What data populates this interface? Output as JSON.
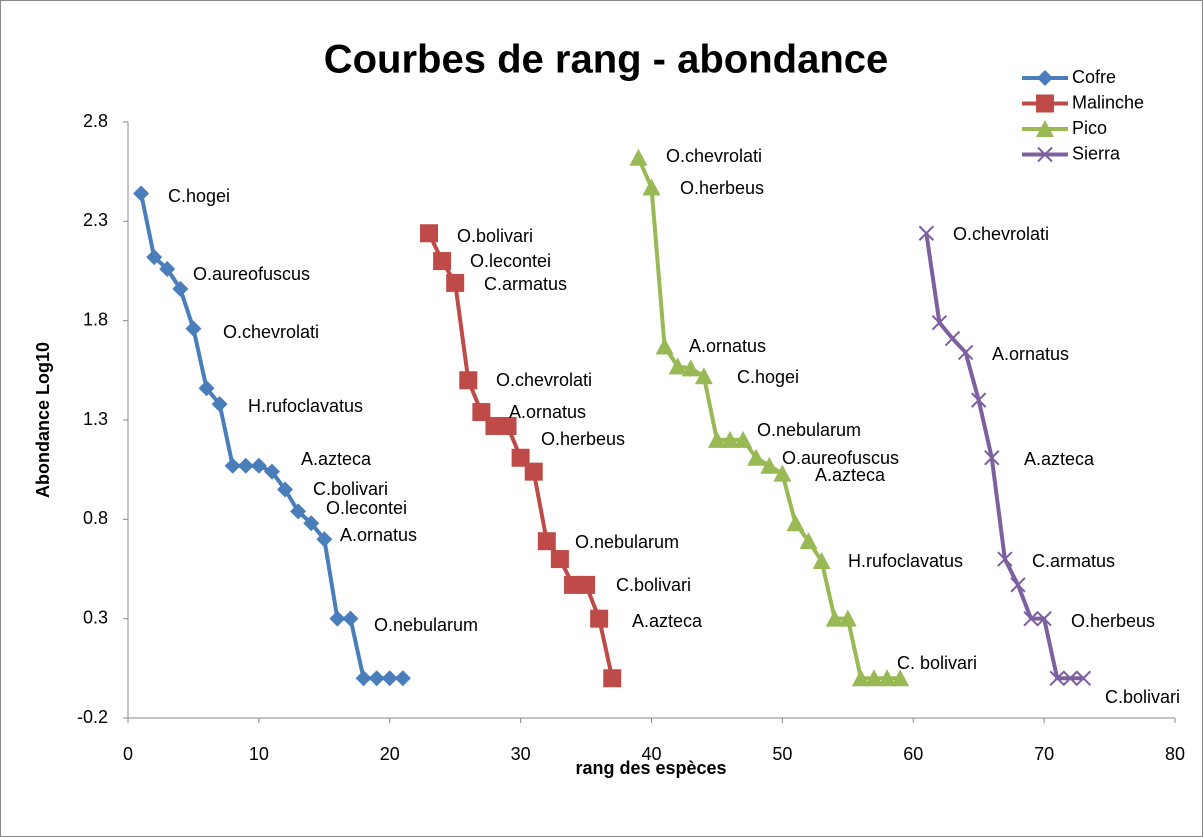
{
  "chart_data": {
    "type": "line",
    "title": "Courbes de rang - abondance",
    "x_label": "rang des espèces",
    "y_label": "Abondance Log10",
    "xlim": [
      0,
      80
    ],
    "xticks": [
      0,
      10,
      20,
      30,
      40,
      50,
      60,
      70,
      80
    ],
    "ylim": [
      -0.2,
      2.8
    ],
    "yticks": [
      -0.2,
      0.3,
      0.8,
      1.3,
      1.8,
      2.3,
      2.8
    ],
    "legend": "top-right",
    "series": [
      {
        "name": "Cofre",
        "color": "#4a7ebb",
        "marker": "diamond",
        "x": [
          1,
          2,
          3,
          4,
          5,
          6,
          7,
          8,
          9,
          10,
          11,
          12,
          13,
          14,
          15,
          16,
          17,
          18,
          19,
          20,
          21
        ],
        "values": [
          2.44,
          2.12,
          2.06,
          1.96,
          1.76,
          1.46,
          1.38,
          1.07,
          1.07,
          1.07,
          1.04,
          0.95,
          0.84,
          0.78,
          0.7,
          0.3,
          0.3,
          0,
          0,
          0,
          0
        ]
      },
      {
        "name": "Malinche",
        "color": "#be4b48",
        "marker": "square",
        "x": [
          23,
          24,
          25,
          26,
          27,
          28,
          29,
          30,
          31,
          32,
          33,
          34,
          35,
          36,
          37
        ],
        "values": [
          2.24,
          2.1,
          1.99,
          1.5,
          1.34,
          1.27,
          1.27,
          1.11,
          1.04,
          0.69,
          0.6,
          0.47,
          0.47,
          0.3,
          0
        ]
      },
      {
        "name": "Pico",
        "color": "#98b954",
        "marker": "triangle",
        "x": [
          39,
          40,
          41,
          42,
          43,
          44,
          45,
          46,
          47,
          48,
          49,
          50,
          51,
          52,
          53,
          54,
          55,
          56,
          57,
          58,
          59
        ],
        "values": [
          2.62,
          2.47,
          1.67,
          1.57,
          1.56,
          1.52,
          1.2,
          1.2,
          1.2,
          1.11,
          1.07,
          1.03,
          0.78,
          0.69,
          0.59,
          0.3,
          0.3,
          0,
          0,
          0,
          0
        ]
      },
      {
        "name": "Sierra",
        "color": "#7d60a0",
        "marker": "x",
        "x": [
          61,
          62,
          63,
          64,
          65,
          66,
          67,
          68,
          69,
          70,
          71,
          72,
          73
        ],
        "values": [
          2.24,
          1.79,
          1.71,
          1.64,
          1.4,
          1.11,
          0.6,
          0.47,
          0.3,
          0.3,
          0,
          0,
          0
        ]
      }
    ],
    "annotations": [
      "C.hogei",
      "O.aureofuscus",
      "O.chevrolati",
      "H.rufoclavatus",
      "A.azteca",
      "C.bolivari",
      "O.lecontei",
      "A.ornatus",
      "O.nebularum",
      "O.bolivari",
      "O.lecontei",
      "C.armatus",
      "O.chevrolati",
      "A.ornatus",
      "O.herbeus",
      "O.nebularum",
      "C.bolivari",
      "A.azteca",
      "O.chevrolati",
      "O.herbeus",
      "A.ornatus",
      "C.hogei",
      "O.nebularum",
      "O.aureofuscus",
      "A.azteca",
      "H.rufoclavatus",
      "C. bolivari",
      "O.chevrolati",
      "A.ornatus",
      "A.azteca",
      "C.armatus",
      "O.herbeus",
      "C.bolivari"
    ]
  }
}
